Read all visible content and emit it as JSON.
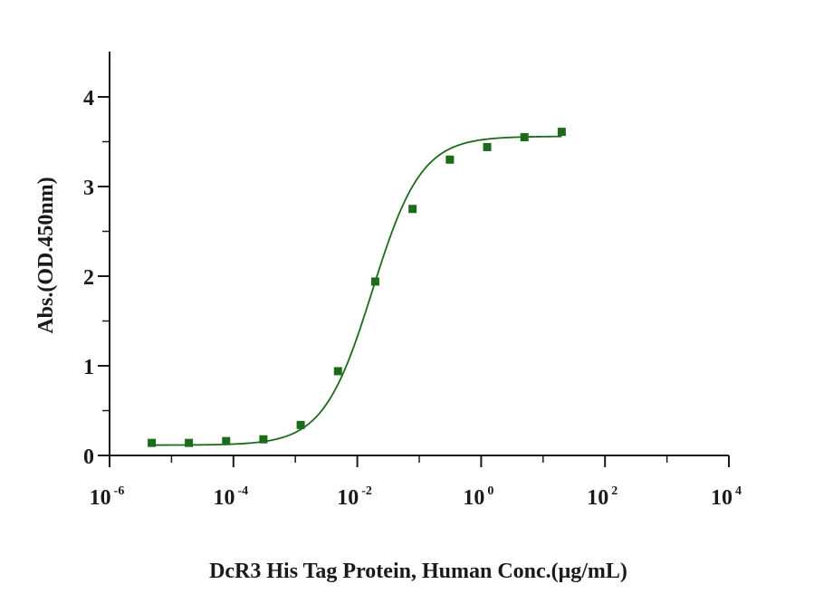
{
  "chart_data": {
    "type": "scatter",
    "title": "",
    "xlabel": "DcR3 His Tag Protein, Human Conc.(μg/mL)",
    "ylabel": "Abs.(OD.450nm)",
    "xscale": "log",
    "xlim": [
      1e-06,
      10000
    ],
    "ylim": [
      0,
      4.5
    ],
    "x_ticks": [
      {
        "base": "10",
        "exp": "-6",
        "value": 1e-06
      },
      {
        "base": "10",
        "exp": "-4",
        "value": 0.0001
      },
      {
        "base": "10",
        "exp": "-2",
        "value": 0.01
      },
      {
        "base": "10",
        "exp": "0",
        "value": 1
      },
      {
        "base": "10",
        "exp": "2",
        "value": 100
      },
      {
        "base": "10",
        "exp": "4",
        "value": 10000
      }
    ],
    "y_ticks": [
      "0",
      "1",
      "2",
      "3",
      "4"
    ],
    "grid": false,
    "legend": "none",
    "color": "#1b6b1b",
    "series": [
      {
        "marker": "square",
        "x": [
          4.8e-06,
          1.91e-05,
          7.63e-05,
          0.000305,
          0.00122,
          0.00488,
          0.0195,
          0.0781,
          0.3125,
          1.25,
          5,
          20
        ],
        "y": [
          0.14,
          0.14,
          0.16,
          0.18,
          0.34,
          0.94,
          1.94,
          2.75,
          3.3,
          3.44,
          3.55,
          3.61
        ]
      }
    ],
    "fit": {
      "type": "4PL",
      "bottom": 0.115,
      "top": 3.56,
      "ec50": 0.0175,
      "hill": 1.1,
      "x_range": [
        4.8e-06,
        20
      ]
    }
  }
}
